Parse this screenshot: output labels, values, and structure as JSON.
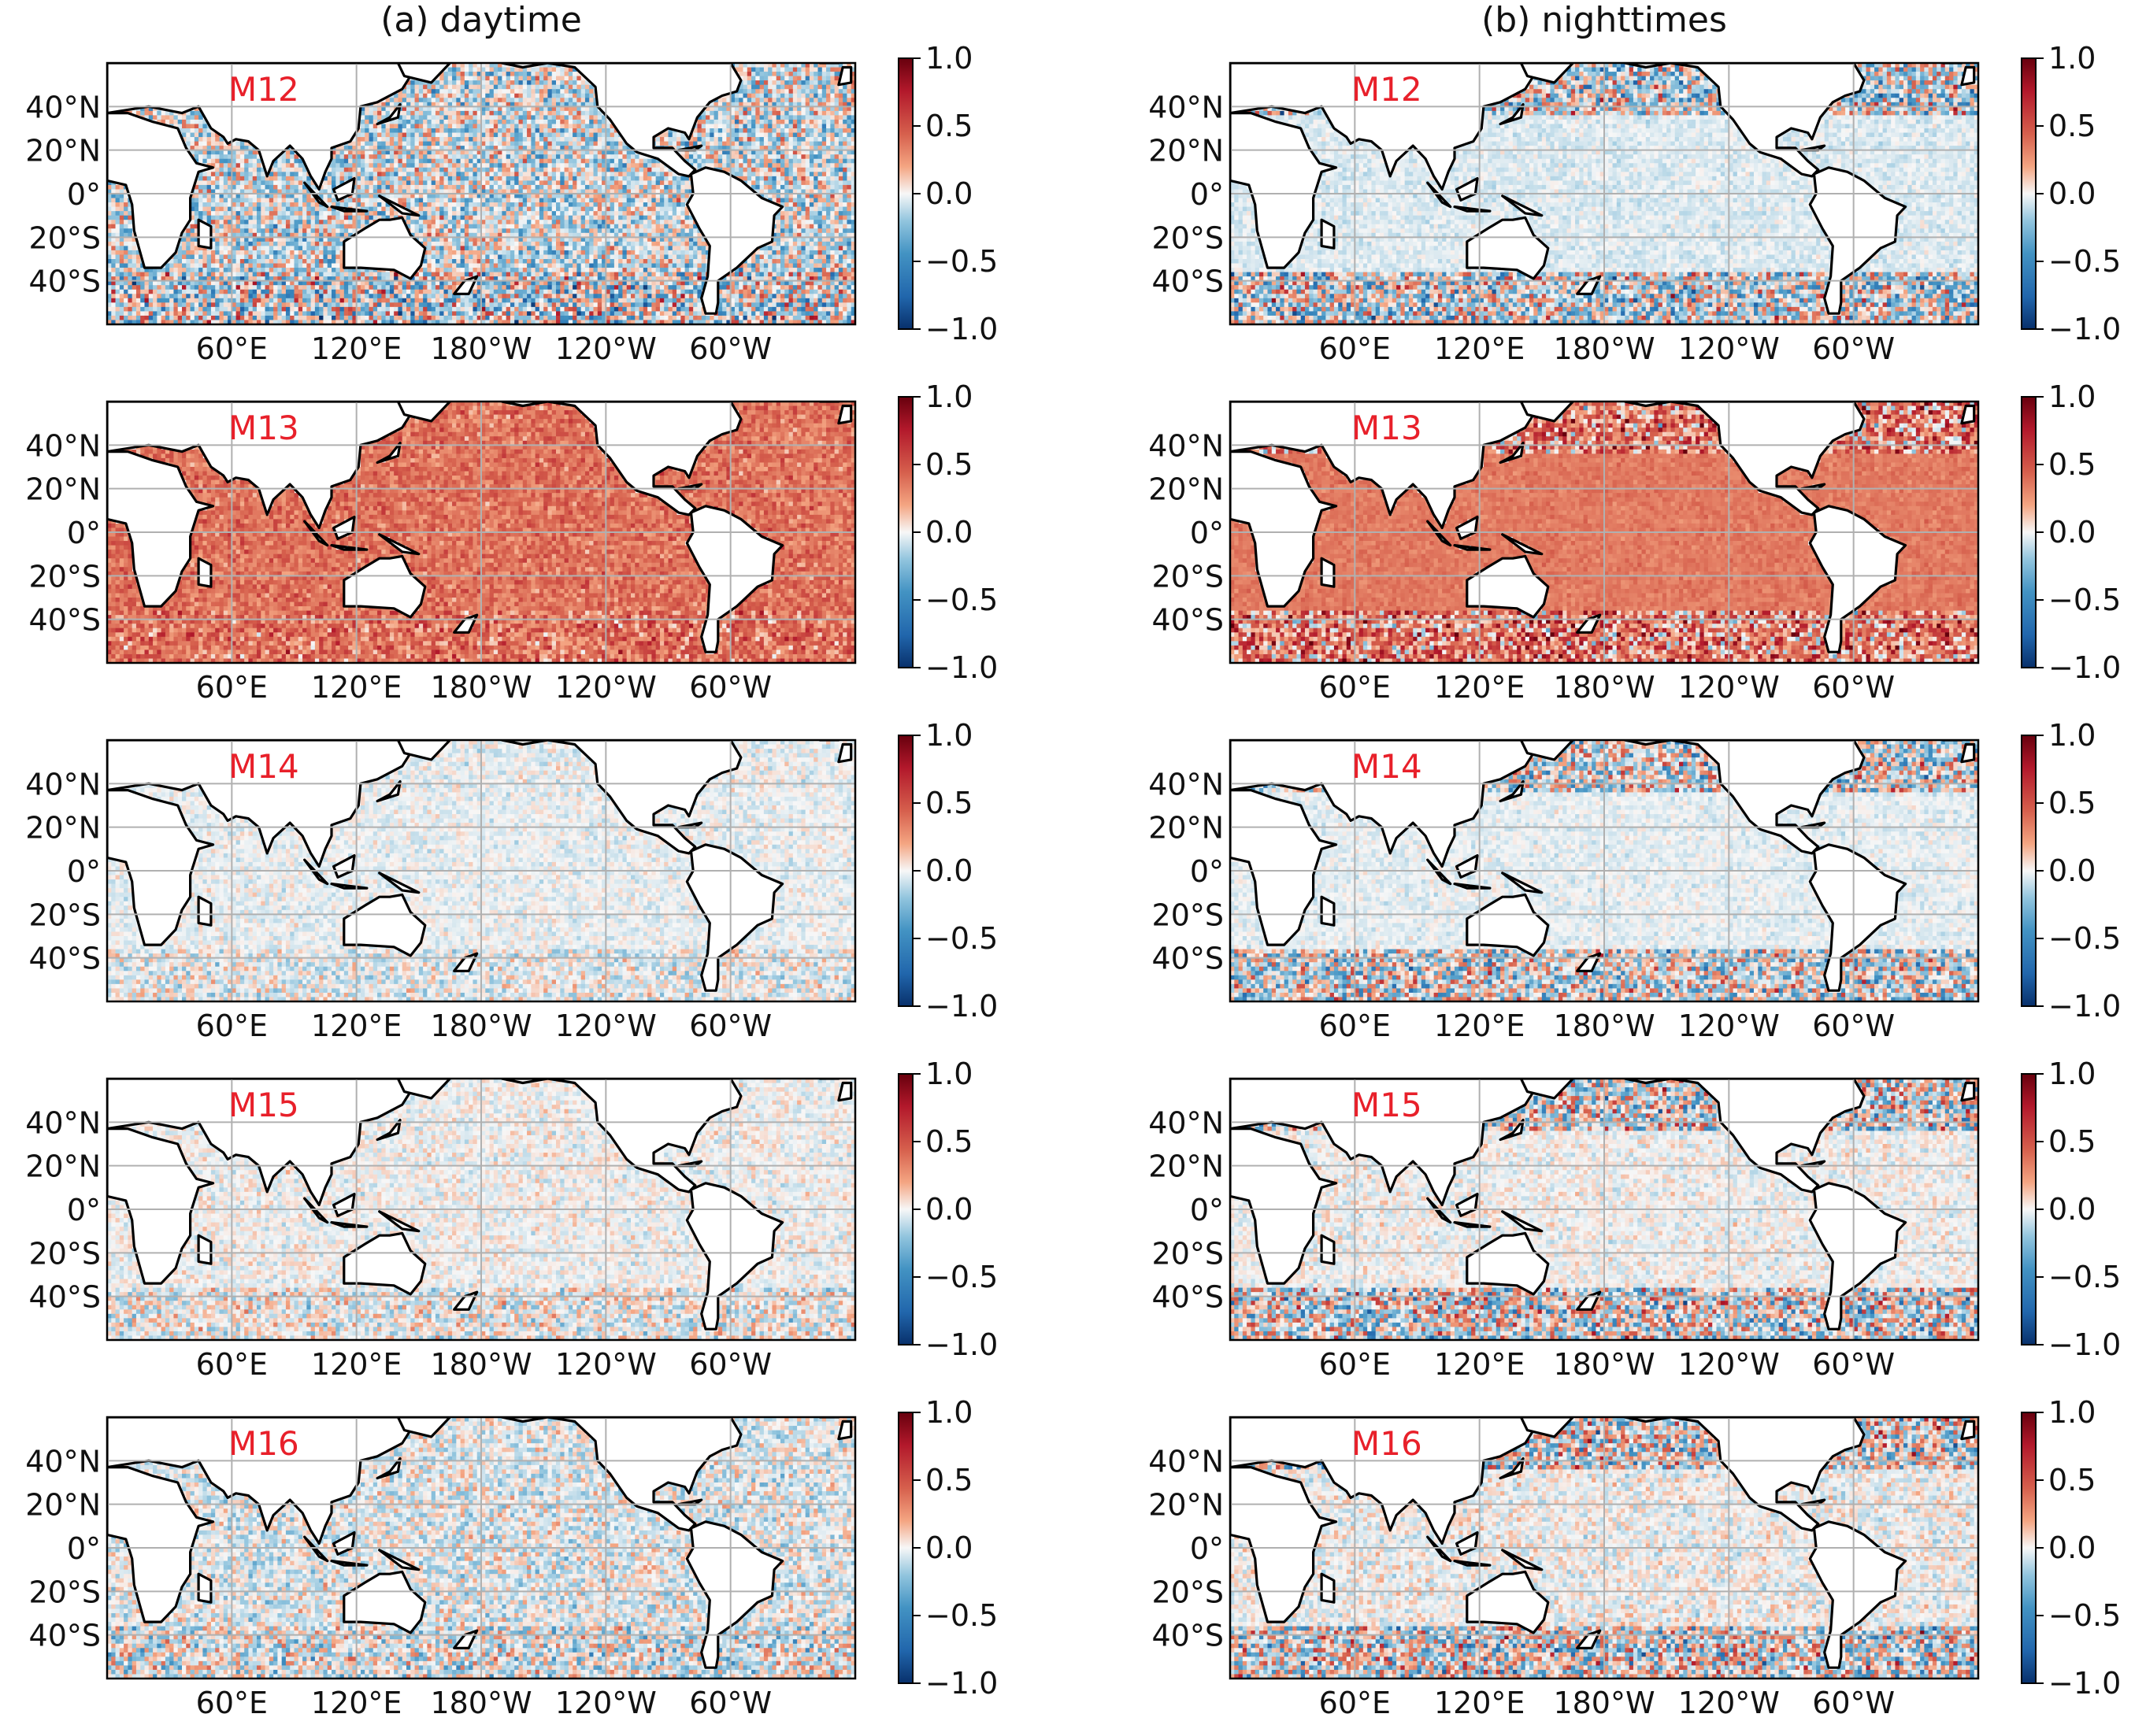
{
  "figure": {
    "columns": [
      {
        "id": "a",
        "title": "(a) daytime"
      },
      {
        "id": "b",
        "title": "(b) nighttimes"
      }
    ],
    "band_labels": [
      "M12",
      "M13",
      "M14",
      "M15",
      "M16"
    ]
  },
  "chart_data": {
    "type": "heatmap",
    "grid": "on",
    "projection": "equirectangular",
    "xticks": [
      "60°E",
      "120°E",
      "180°W",
      "120°W",
      "60°W"
    ],
    "yticks": [
      "40°N",
      "20°N",
      "0°",
      "20°S",
      "40°S"
    ],
    "lon_range": [
      0,
      360
    ],
    "lat_range": [
      -60,
      60
    ],
    "colorbar": {
      "ticks": [
        "1.0",
        "0.5",
        "0.0",
        "−0.5",
        "−1.0"
      ],
      "range": [
        -1.0,
        1.0
      ],
      "colormap": "RdBu_r",
      "low_color": "#08306b",
      "mid_color": "#f7f7f7",
      "high_color": "#67000d"
    },
    "panels": [
      {
        "column": "(a) daytime",
        "band": "M12",
        "mean": -0.05,
        "noise": 0.4,
        "southern_noise": 0.6,
        "northern_noise": 0.4
      },
      {
        "column": "(a) daytime",
        "band": "M13",
        "mean": 0.38,
        "noise": 0.18,
        "southern_noise": 0.28,
        "northern_noise": 0.2
      },
      {
        "column": "(a) daytime",
        "band": "M14",
        "mean": -0.02,
        "noise": 0.1,
        "southern_noise": 0.2,
        "northern_noise": 0.12
      },
      {
        "column": "(a) daytime",
        "band": "M15",
        "mean": 0.0,
        "noise": 0.12,
        "southern_noise": 0.25,
        "northern_noise": 0.12
      },
      {
        "column": "(a) daytime",
        "band": "M16",
        "mean": -0.03,
        "noise": 0.22,
        "southern_noise": 0.35,
        "northern_noise": 0.2
      },
      {
        "column": "(b) nighttimes",
        "band": "M12",
        "mean": -0.05,
        "noise": 0.08,
        "southern_noise": 0.55,
        "northern_noise": 0.55
      },
      {
        "column": "(b) nighttimes",
        "band": "M13",
        "mean": 0.35,
        "noise": 0.08,
        "southern_noise": 0.5,
        "northern_noise": 0.5
      },
      {
        "column": "(b) nighttimes",
        "band": "M14",
        "mean": -0.03,
        "noise": 0.08,
        "southern_noise": 0.5,
        "northern_noise": 0.5
      },
      {
        "column": "(b) nighttimes",
        "band": "M15",
        "mean": 0.0,
        "noise": 0.12,
        "southern_noise": 0.55,
        "northern_noise": 0.55
      },
      {
        "column": "(b) nighttimes",
        "band": "M16",
        "mean": 0.0,
        "noise": 0.15,
        "southern_noise": 0.55,
        "northern_noise": 0.55
      }
    ]
  }
}
